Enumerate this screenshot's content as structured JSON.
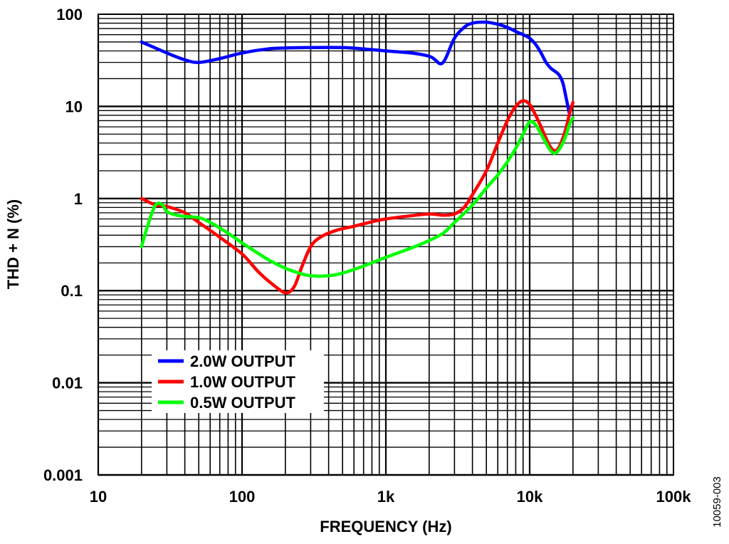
{
  "chart_data": {
    "type": "line",
    "title": "",
    "xlabel": "FREQUENCY (Hz)",
    "ylabel": "THD + N (%)",
    "x_scale": "log",
    "y_scale": "log",
    "xlim": [
      10,
      100000
    ],
    "ylim": [
      0.001,
      100
    ],
    "grid": true,
    "legend_position": "bottom-left",
    "x_ticks": [
      10,
      100,
      1000,
      10000,
      100000
    ],
    "x_tick_labels": [
      "10",
      "100",
      "1k",
      "10k",
      "100k"
    ],
    "y_ticks": [
      0.001,
      0.01,
      0.1,
      1,
      10,
      100
    ],
    "y_tick_labels": [
      "0.001",
      "0.01",
      "0.1",
      "1",
      "10",
      "100"
    ],
    "series": [
      {
        "name": "2.0W OUTPUT",
        "color": "#0000ff",
        "points": [
          [
            20,
            50
          ],
          [
            30,
            38
          ],
          [
            40,
            32
          ],
          [
            50,
            30
          ],
          [
            70,
            33
          ],
          [
            100,
            38
          ],
          [
            150,
            42
          ],
          [
            200,
            43
          ],
          [
            300,
            43.5
          ],
          [
            500,
            43.5
          ],
          [
            700,
            42
          ],
          [
            1000,
            40
          ],
          [
            1500,
            38
          ],
          [
            2000,
            35
          ],
          [
            2200,
            32
          ],
          [
            2400,
            29
          ],
          [
            2600,
            33
          ],
          [
            3000,
            55
          ],
          [
            3500,
            72
          ],
          [
            4000,
            80
          ],
          [
            5000,
            82
          ],
          [
            6000,
            78
          ],
          [
            7000,
            72
          ],
          [
            8000,
            65
          ],
          [
            9000,
            60
          ],
          [
            10000,
            55
          ],
          [
            11000,
            47
          ],
          [
            12000,
            38
          ],
          [
            13000,
            30
          ],
          [
            14000,
            26
          ],
          [
            15000,
            24
          ],
          [
            16000,
            22
          ],
          [
            17000,
            18
          ],
          [
            18000,
            12
          ],
          [
            19000,
            8
          ]
        ]
      },
      {
        "name": "1.0W OUTPUT",
        "color": "#ff0000",
        "points": [
          [
            20,
            1.0
          ],
          [
            25,
            0.85
          ],
          [
            30,
            0.82
          ],
          [
            40,
            0.7
          ],
          [
            50,
            0.55
          ],
          [
            70,
            0.38
          ],
          [
            100,
            0.25
          ],
          [
            130,
            0.16
          ],
          [
            160,
            0.12
          ],
          [
            200,
            0.095
          ],
          [
            230,
            0.11
          ],
          [
            260,
            0.18
          ],
          [
            300,
            0.3
          ],
          [
            350,
            0.38
          ],
          [
            450,
            0.45
          ],
          [
            600,
            0.5
          ],
          [
            800,
            0.56
          ],
          [
            1000,
            0.6
          ],
          [
            1500,
            0.65
          ],
          [
            2000,
            0.68
          ],
          [
            2500,
            0.66
          ],
          [
            3000,
            0.68
          ],
          [
            3500,
            0.8
          ],
          [
            4000,
            1.1
          ],
          [
            5000,
            2.0
          ],
          [
            6000,
            4.0
          ],
          [
            7000,
            7.0
          ],
          [
            8000,
            10
          ],
          [
            9000,
            11.5
          ],
          [
            10000,
            10.5
          ],
          [
            11000,
            8
          ],
          [
            12000,
            6
          ],
          [
            13000,
            4.5
          ],
          [
            14000,
            3.6
          ],
          [
            15000,
            3.3
          ],
          [
            16000,
            3.6
          ],
          [
            17000,
            4.5
          ],
          [
            18000,
            6
          ],
          [
            19000,
            8.5
          ],
          [
            20000,
            11
          ]
        ]
      },
      {
        "name": "0.5W OUTPUT",
        "color": "#00ff00",
        "points": [
          [
            20,
            0.3
          ],
          [
            22,
            0.5
          ],
          [
            25,
            0.85
          ],
          [
            28,
            0.85
          ],
          [
            30,
            0.72
          ],
          [
            35,
            0.66
          ],
          [
            40,
            0.64
          ],
          [
            50,
            0.62
          ],
          [
            60,
            0.55
          ],
          [
            80,
            0.42
          ],
          [
            100,
            0.33
          ],
          [
            150,
            0.22
          ],
          [
            200,
            0.175
          ],
          [
            250,
            0.155
          ],
          [
            300,
            0.145
          ],
          [
            400,
            0.145
          ],
          [
            500,
            0.155
          ],
          [
            700,
            0.185
          ],
          [
            1000,
            0.23
          ],
          [
            1500,
            0.29
          ],
          [
            2000,
            0.35
          ],
          [
            2500,
            0.42
          ],
          [
            3000,
            0.55
          ],
          [
            4000,
            0.85
          ],
          [
            5000,
            1.3
          ],
          [
            6000,
            1.8
          ],
          [
            7000,
            2.5
          ],
          [
            8000,
            3.5
          ],
          [
            9000,
            5.0
          ],
          [
            10000,
            6.8
          ],
          [
            11000,
            6.3
          ],
          [
            12000,
            5.0
          ],
          [
            13000,
            4.0
          ],
          [
            14000,
            3.3
          ],
          [
            15000,
            3.1
          ],
          [
            16000,
            3.4
          ],
          [
            17000,
            4.0
          ],
          [
            18000,
            5.0
          ],
          [
            19000,
            6.5
          ],
          [
            20000,
            7.5
          ]
        ]
      }
    ]
  },
  "figure_id": "10059-003"
}
